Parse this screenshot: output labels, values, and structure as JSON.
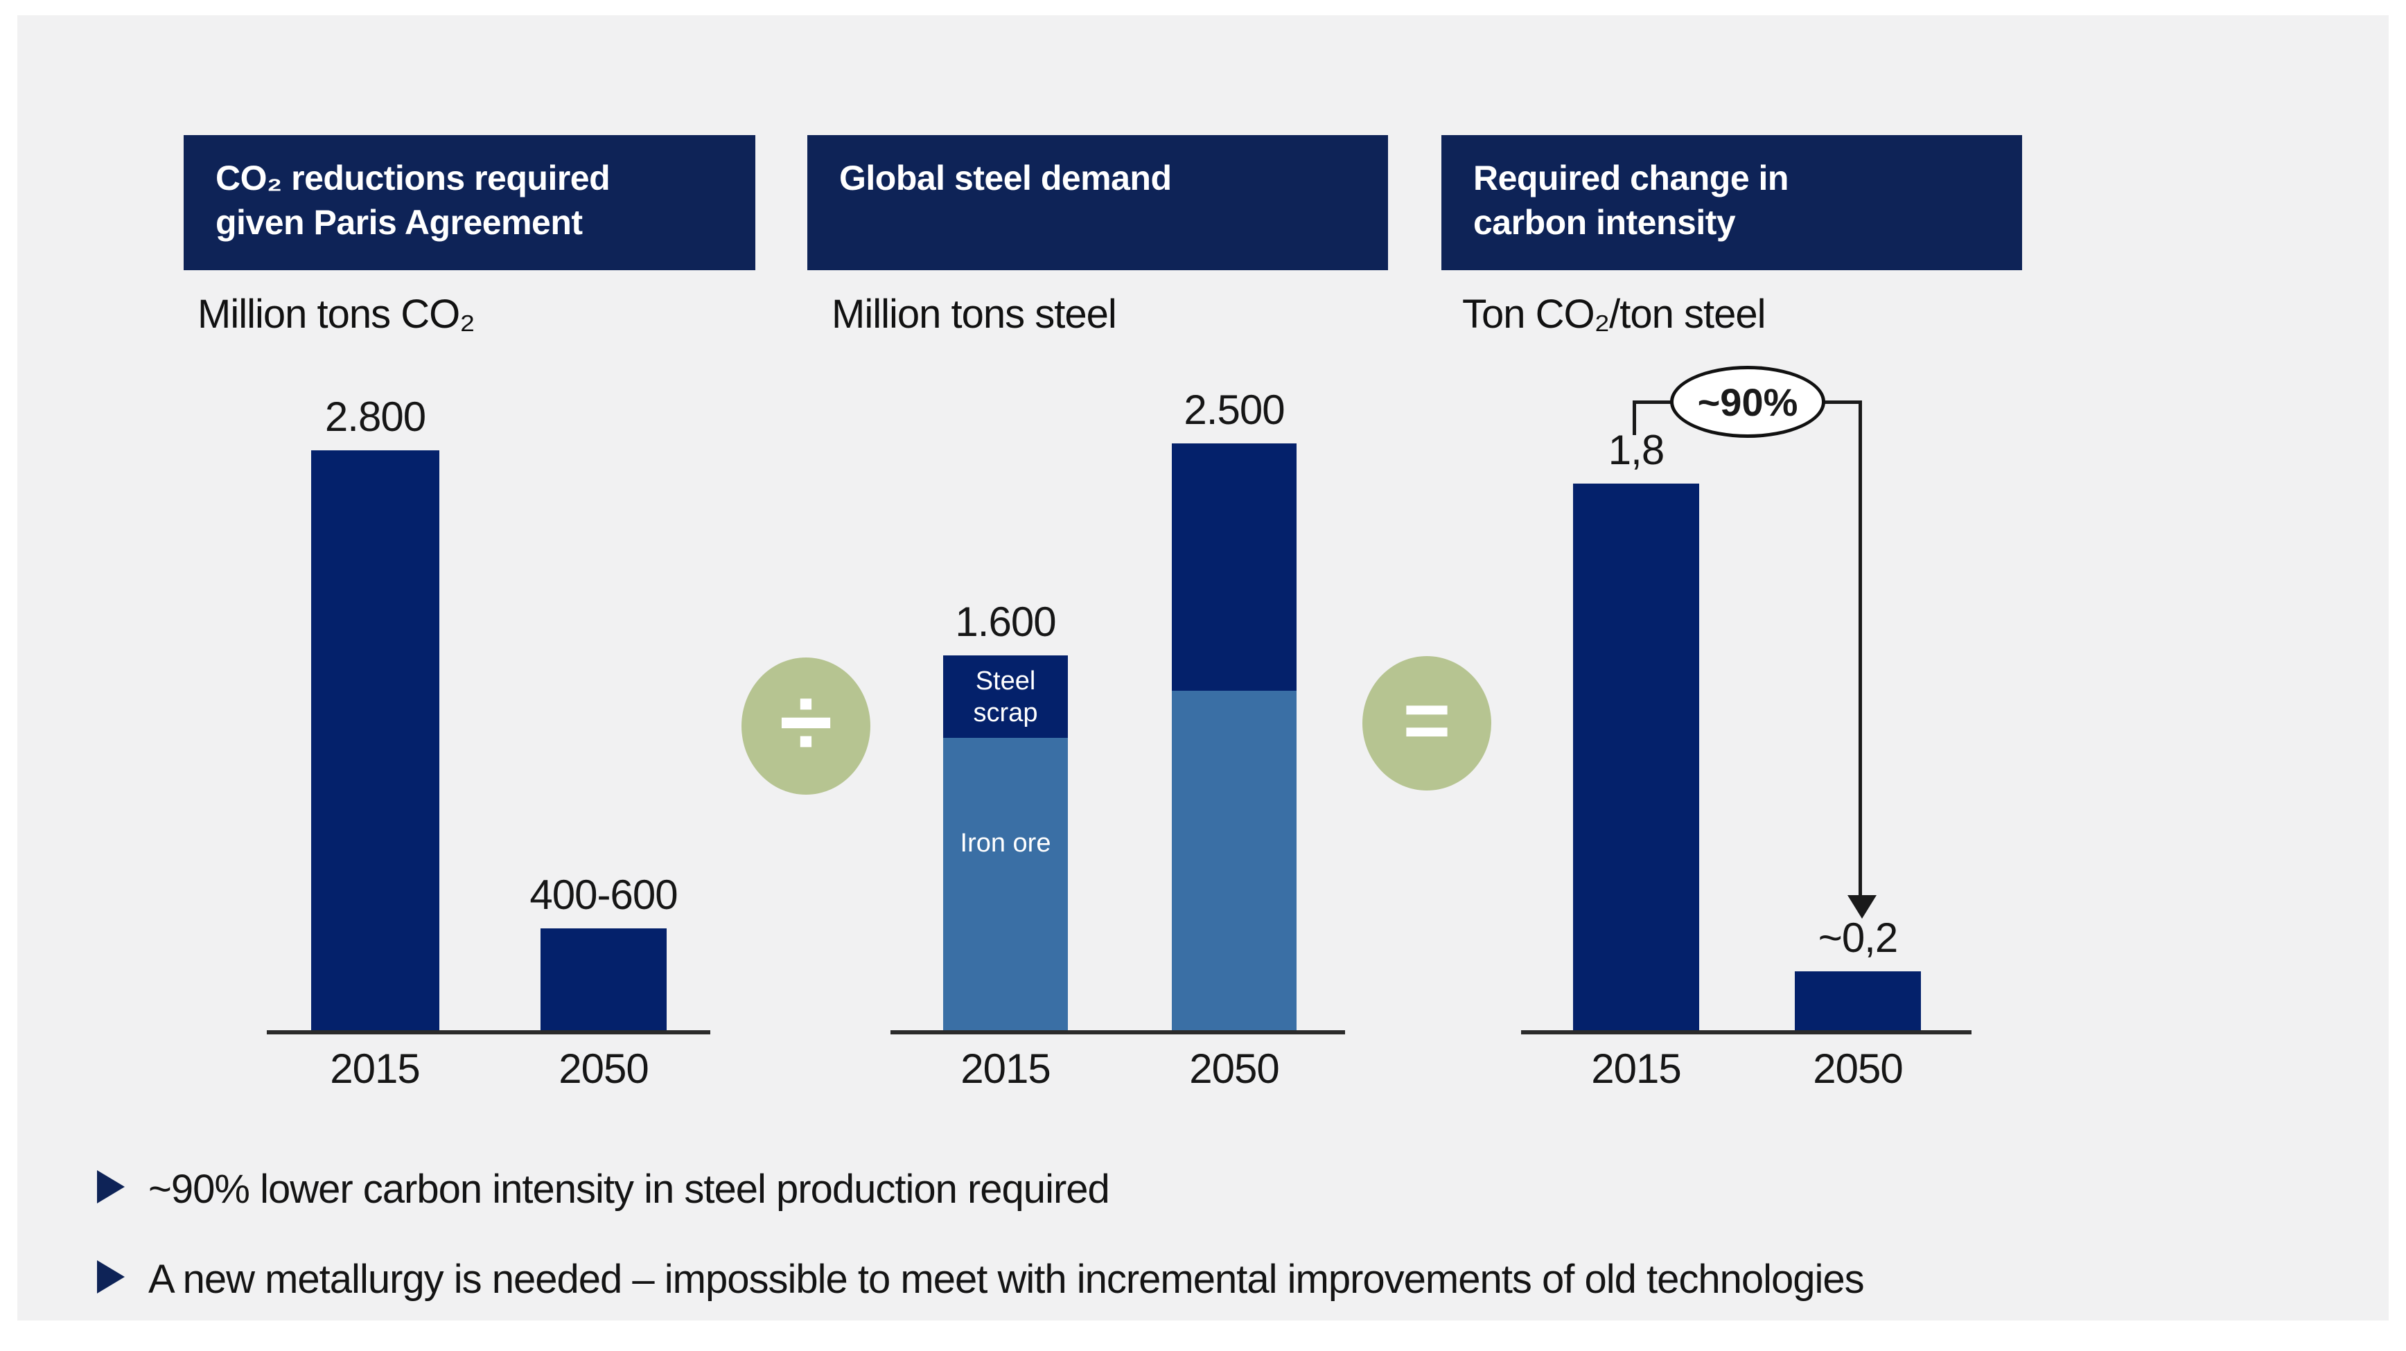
{
  "panels": [
    {
      "header_line1": "CO₂ reductions required",
      "header_line2": "given Paris Agreement",
      "unit": "Million tons CO₂"
    },
    {
      "header_line1": "Global steel demand",
      "header_line2": "",
      "unit": "Million tons steel"
    },
    {
      "header_line1": "Required change in",
      "header_line2": "carbon intensity",
      "unit": "Ton CO₂/ton steel"
    }
  ],
  "operators": {
    "divide": "÷",
    "equals": "="
  },
  "chart_data": [
    {
      "type": "bar",
      "title": "CO₂ reductions required given Paris Agreement",
      "ylabel": "Million tons CO₂",
      "categories": [
        "2015",
        "2050"
      ],
      "values": [
        2800,
        500
      ],
      "value_labels": [
        "2.800",
        "400-600"
      ],
      "bar_color": "#04216b",
      "grid": false,
      "legend": "none"
    },
    {
      "type": "stacked-bar",
      "title": "Global steel demand",
      "ylabel": "Million tons steel",
      "categories": [
        "2015",
        "2050"
      ],
      "series": [
        {
          "name": "Steel scrap",
          "color": "#04216b",
          "values": [
            350,
            1050
          ]
        },
        {
          "name": "Iron ore",
          "color": "#3a6fa5",
          "values": [
            1250,
            1450
          ]
        }
      ],
      "totals": [
        1600,
        2500
      ],
      "total_labels": [
        "1.600",
        "2.500"
      ],
      "segment_labels": {
        "scrap_line1": "Steel",
        "scrap_line2": "scrap",
        "iron_ore": "Iron ore"
      },
      "grid": false,
      "legend": "labels-inside-first-bar"
    },
    {
      "type": "bar",
      "title": "Required change in carbon intensity",
      "ylabel": "Ton CO₂/ton steel",
      "categories": [
        "2015",
        "2050"
      ],
      "values": [
        1.8,
        0.2
      ],
      "value_labels": [
        "1,8",
        "~0,2"
      ],
      "annotation": "~90%",
      "bar_color": "#04216b",
      "grid": false,
      "legend": "none"
    }
  ],
  "bullets": [
    "~90% lower carbon intensity in steel production required",
    "A new metallurgy is needed – impossible to meet with incremental improvements of old technologies"
  ],
  "colors": {
    "background": "#f1f1f2",
    "header_navy": "#0e2357",
    "bar_navy": "#04216b",
    "bar_light_blue": "#3a6fa5",
    "operator_green": "#b6c491"
  }
}
